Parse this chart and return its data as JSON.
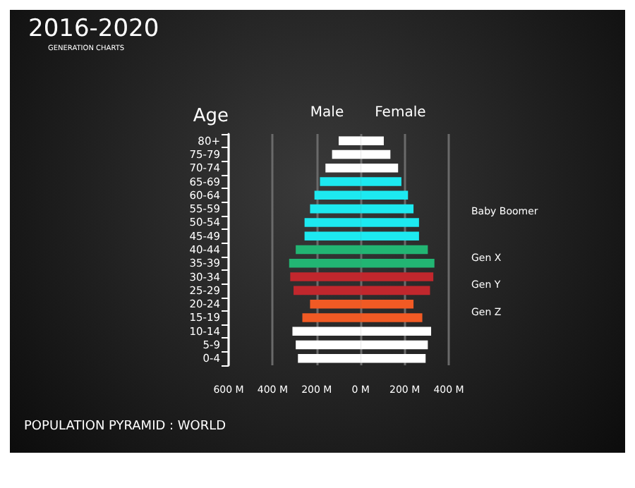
{
  "chart_data": {
    "type": "bar",
    "orientation": "horizontal",
    "title": "2016-2020",
    "subtitle": "GENERATION CHARTS",
    "ylabel": "Age",
    "categories": [
      "80+",
      "75-79",
      "70-74",
      "65-69",
      "60-64",
      "55-59",
      "50-54",
      "45-49",
      "40-44",
      "35-39",
      "30-34",
      "25-29",
      "20-24",
      "15-19",
      "10-14",
      "5-9",
      "0-4"
    ],
    "series": [
      {
        "name": "Male",
        "colors": [
          "#ffffff",
          "#ffffff",
          "#ffffff",
          "#1de9f0",
          "#1de9f0",
          "#1de9f0",
          "#1de9f0",
          "#1de9f0",
          "#22b573",
          "#22b573",
          "#c1272d",
          "#c1272d",
          "#f15a24",
          "#f15a24",
          "#ffffff",
          "#ffffff",
          "#ffffff"
        ],
        "values": [
          -100,
          -130,
          -160,
          -185,
          -210,
          -230,
          -255,
          -255,
          -295,
          -325,
          -320,
          -305,
          -230,
          -265,
          -310,
          -295,
          -285
        ]
      },
      {
        "name": "Female",
        "colors": [
          "#ffffff",
          "#ffffff",
          "#ffffff",
          "#1de9f0",
          "#1de9f0",
          "#1de9f0",
          "#1de9f0",
          "#1de9f0",
          "#22b573",
          "#22b573",
          "#c1272d",
          "#c1272d",
          "#f15a24",
          "#f15a24",
          "#ffffff",
          "#ffffff",
          "#ffffff"
        ],
        "values": [
          105,
          135,
          170,
          185,
          215,
          240,
          265,
          265,
          305,
          335,
          330,
          315,
          240,
          280,
          320,
          305,
          295
        ]
      }
    ],
    "xlim": [
      -600,
      400
    ],
    "xticks": [
      {
        "value": -600,
        "label": "600 M"
      },
      {
        "value": -400,
        "label": "400 M"
      },
      {
        "value": -200,
        "label": "200 M"
      },
      {
        "value": 0,
        "label": "0 M"
      },
      {
        "value": 200,
        "label": "200 M"
      },
      {
        "value": 400,
        "label": "400 M"
      }
    ],
    "grid": "x",
    "legend": false,
    "stacked": true,
    "annotations": [
      "Baby Boomer",
      "Gen X",
      "Gen Y",
      "Gen Z",
      "POPULATION PYRAMID : WORLD"
    ]
  }
}
